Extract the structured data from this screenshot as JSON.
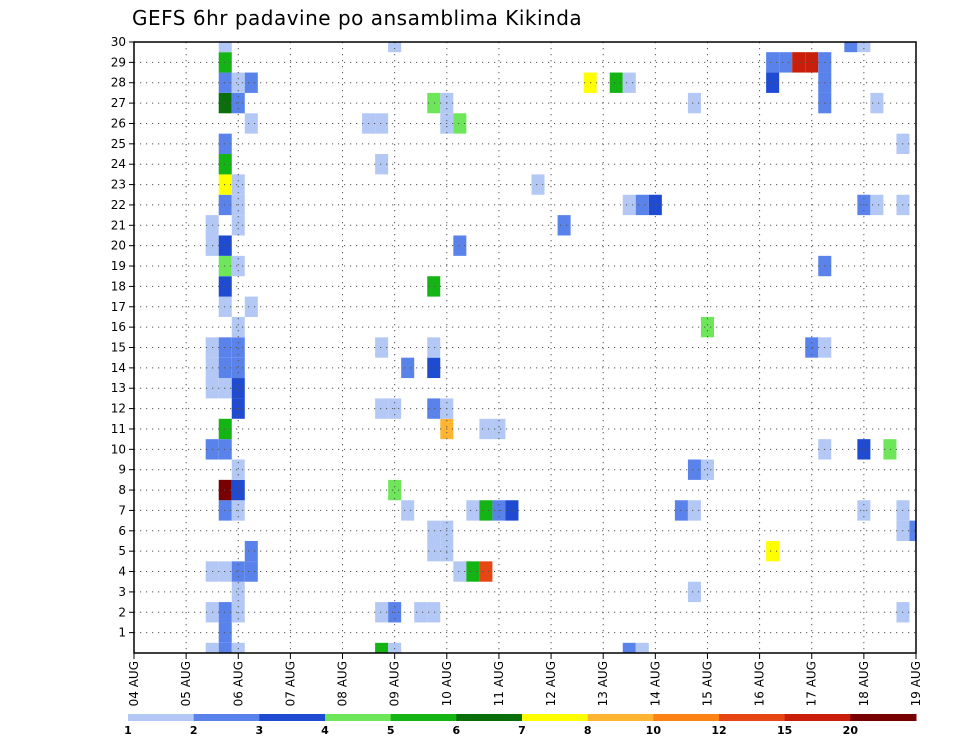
{
  "chart_data": {
    "type": "heatmap",
    "title": "GEFS 6hr padavine po ansamblima Kikinda",
    "xlabel": "",
    "ylabel": "",
    "x_ticks": [
      "04 AUG",
      "05 AUG",
      "06 AUG",
      "07 AUG",
      "08 AUG",
      "09 AUG",
      "10 AUG",
      "11 AUG",
      "12 AUG",
      "13 AUG",
      "14 AUG",
      "15 AUG",
      "16 AUG",
      "17 AUG",
      "18 AUG",
      "19 AUG"
    ],
    "xlim": [
      0,
      60
    ],
    "y_ticks": [
      1,
      2,
      3,
      4,
      5,
      6,
      7,
      8,
      9,
      10,
      11,
      12,
      13,
      14,
      15,
      16,
      17,
      18,
      19,
      20,
      21,
      22,
      23,
      24,
      25,
      26,
      27,
      28,
      29,
      30
    ],
    "ylim": [
      0,
      30
    ],
    "grid": true,
    "colorbar": {
      "labels": [
        "1",
        "2",
        "3",
        "4",
        "5",
        "6",
        "7",
        "8",
        "10",
        "12",
        "15",
        "20"
      ],
      "colors": [
        "#b4c8f5",
        "#5a82eb",
        "#1e4bd2",
        "#6ee65a",
        "#14b414",
        "#0a6e0a",
        "#ffff00",
        "#ffb432",
        "#ff8214",
        "#e64614",
        "#c81e0a",
        "#780000"
      ]
    },
    "cells": [
      {
        "x": 6,
        "m": 0,
        "v": 1.5
      },
      {
        "x": 7,
        "m": 0,
        "v": 2.5
      },
      {
        "x": 8,
        "m": 0,
        "v": 1.5
      },
      {
        "x": 19,
        "m": 0,
        "v": 5.5
      },
      {
        "x": 20,
        "m": 0,
        "v": 1.5
      },
      {
        "x": 38,
        "m": 0,
        "v": 2.5
      },
      {
        "x": 39,
        "m": 0,
        "v": 1.5
      },
      {
        "x": 7,
        "m": 1,
        "v": 2.5
      },
      {
        "x": 6,
        "m": 2,
        "v": 1.5
      },
      {
        "x": 7,
        "m": 2,
        "v": 2.5
      },
      {
        "x": 8,
        "m": 2,
        "v": 1.5
      },
      {
        "x": 19,
        "m": 2,
        "v": 1.5
      },
      {
        "x": 20,
        "m": 2,
        "v": 2.5
      },
      {
        "x": 22,
        "m": 2,
        "v": 1.5
      },
      {
        "x": 23,
        "m": 2,
        "v": 1.5
      },
      {
        "x": 59,
        "m": 2,
        "v": 1.5
      },
      {
        "x": 8,
        "m": 3,
        "v": 1.5
      },
      {
        "x": 43,
        "m": 3,
        "v": 1.5
      },
      {
        "x": 6,
        "m": 4,
        "v": 1.5
      },
      {
        "x": 7,
        "m": 4,
        "v": 1.5
      },
      {
        "x": 8,
        "m": 4,
        "v": 2.5
      },
      {
        "x": 9,
        "m": 4,
        "v": 2.5
      },
      {
        "x": 25,
        "m": 4,
        "v": 1.5
      },
      {
        "x": 26,
        "m": 4,
        "v": 5.5
      },
      {
        "x": 27,
        "m": 4,
        "v": 14
      },
      {
        "x": 9,
        "m": 5,
        "v": 2.5
      },
      {
        "x": 23,
        "m": 5,
        "v": 1.5
      },
      {
        "x": 24,
        "m": 5,
        "v": 1.5
      },
      {
        "x": 49,
        "m": 5,
        "v": 7.5
      },
      {
        "x": 23,
        "m": 6,
        "v": 1.5
      },
      {
        "x": 24,
        "m": 6,
        "v": 1.5
      },
      {
        "x": 59,
        "m": 6,
        "v": 1.5
      },
      {
        "x": 60,
        "m": 6,
        "v": 2.5
      },
      {
        "x": 7,
        "m": 7,
        "v": 2.5
      },
      {
        "x": 8,
        "m": 7,
        "v": 1.5
      },
      {
        "x": 21,
        "m": 7,
        "v": 1.5
      },
      {
        "x": 26,
        "m": 7,
        "v": 1.5
      },
      {
        "x": 27,
        "m": 7,
        "v": 5.5
      },
      {
        "x": 28,
        "m": 7,
        "v": 2.5
      },
      {
        "x": 29,
        "m": 7,
        "v": 3.5
      },
      {
        "x": 42,
        "m": 7,
        "v": 2.5
      },
      {
        "x": 43,
        "m": 7,
        "v": 1.5
      },
      {
        "x": 56,
        "m": 7,
        "v": 1.5
      },
      {
        "x": 59,
        "m": 7,
        "v": 1.5
      },
      {
        "x": 7,
        "m": 8,
        "v": 25
      },
      {
        "x": 8,
        "m": 8,
        "v": 3.5
      },
      {
        "x": 20,
        "m": 8,
        "v": 4.5
      },
      {
        "x": 8,
        "m": 9,
        "v": 1.5
      },
      {
        "x": 43,
        "m": 9,
        "v": 2.5
      },
      {
        "x": 44,
        "m": 9,
        "v": 1.5
      },
      {
        "x": 6,
        "m": 10,
        "v": 2.5
      },
      {
        "x": 7,
        "m": 10,
        "v": 2.5
      },
      {
        "x": 53,
        "m": 10,
        "v": 1.5
      },
      {
        "x": 56,
        "m": 10,
        "v": 3.5
      },
      {
        "x": 58,
        "m": 10,
        "v": 4.5
      },
      {
        "x": 7,
        "m": 11,
        "v": 5.5
      },
      {
        "x": 24,
        "m": 11,
        "v": 9
      },
      {
        "x": 27,
        "m": 11,
        "v": 1.5
      },
      {
        "x": 28,
        "m": 11,
        "v": 1.5
      },
      {
        "x": 8,
        "m": 12,
        "v": 3.5
      },
      {
        "x": 19,
        "m": 12,
        "v": 1.5
      },
      {
        "x": 20,
        "m": 12,
        "v": 1.5
      },
      {
        "x": 23,
        "m": 12,
        "v": 2.5
      },
      {
        "x": 24,
        "m": 12,
        "v": 1.5
      },
      {
        "x": 6,
        "m": 13,
        "v": 1.5
      },
      {
        "x": 7,
        "m": 13,
        "v": 1.5
      },
      {
        "x": 8,
        "m": 13,
        "v": 3.5
      },
      {
        "x": 6,
        "m": 14,
        "v": 1.5
      },
      {
        "x": 7,
        "m": 14,
        "v": 2.5
      },
      {
        "x": 8,
        "m": 14,
        "v": 2.5
      },
      {
        "x": 21,
        "m": 14,
        "v": 2.5
      },
      {
        "x": 23,
        "m": 14,
        "v": 3.5
      },
      {
        "x": 6,
        "m": 15,
        "v": 1.5
      },
      {
        "x": 7,
        "m": 15,
        "v": 2.5
      },
      {
        "x": 8,
        "m": 15,
        "v": 2.5
      },
      {
        "x": 19,
        "m": 15,
        "v": 1.5
      },
      {
        "x": 23,
        "m": 15,
        "v": 1.5
      },
      {
        "x": 52,
        "m": 15,
        "v": 2.5
      },
      {
        "x": 53,
        "m": 15,
        "v": 1.5
      },
      {
        "x": 8,
        "m": 16,
        "v": 1.5
      },
      {
        "x": 44,
        "m": 16,
        "v": 4.5
      },
      {
        "x": 7,
        "m": 17,
        "v": 1.5
      },
      {
        "x": 9,
        "m": 17,
        "v": 1.5
      },
      {
        "x": 7,
        "m": 18,
        "v": 3.5
      },
      {
        "x": 23,
        "m": 18,
        "v": 5.5
      },
      {
        "x": 7,
        "m": 19,
        "v": 4.5
      },
      {
        "x": 8,
        "m": 19,
        "v": 1.5
      },
      {
        "x": 53,
        "m": 19,
        "v": 2.5
      },
      {
        "x": 6,
        "m": 20,
        "v": 1.5
      },
      {
        "x": 7,
        "m": 20,
        "v": 3.5
      },
      {
        "x": 25,
        "m": 20,
        "v": 2.5
      },
      {
        "x": 6,
        "m": 21,
        "v": 1.5
      },
      {
        "x": 8,
        "m": 21,
        "v": 1.5
      },
      {
        "x": 33,
        "m": 21,
        "v": 2.5
      },
      {
        "x": 7,
        "m": 22,
        "v": 2.5
      },
      {
        "x": 8,
        "m": 22,
        "v": 1.5
      },
      {
        "x": 38,
        "m": 22,
        "v": 1.5
      },
      {
        "x": 39,
        "m": 22,
        "v": 2.5
      },
      {
        "x": 40,
        "m": 22,
        "v": 3.5
      },
      {
        "x": 56,
        "m": 22,
        "v": 2.5
      },
      {
        "x": 57,
        "m": 22,
        "v": 1.5
      },
      {
        "x": 59,
        "m": 22,
        "v": 1.5
      },
      {
        "x": 7,
        "m": 23,
        "v": 7.5
      },
      {
        "x": 8,
        "m": 23,
        "v": 1.5
      },
      {
        "x": 31,
        "m": 23,
        "v": 1.5
      },
      {
        "x": 7,
        "m": 24,
        "v": 5.5
      },
      {
        "x": 19,
        "m": 24,
        "v": 1.5
      },
      {
        "x": 7,
        "m": 25,
        "v": 2.5
      },
      {
        "x": 59,
        "m": 25,
        "v": 1.5
      },
      {
        "x": 9,
        "m": 26,
        "v": 1.5
      },
      {
        "x": 18,
        "m": 26,
        "v": 1.5
      },
      {
        "x": 19,
        "m": 26,
        "v": 1.5
      },
      {
        "x": 24,
        "m": 26,
        "v": 1.5
      },
      {
        "x": 25,
        "m": 26,
        "v": 4.5
      },
      {
        "x": 7,
        "m": 27,
        "v": 6.5
      },
      {
        "x": 8,
        "m": 27,
        "v": 2.5
      },
      {
        "x": 23,
        "m": 27,
        "v": 4.5
      },
      {
        "x": 24,
        "m": 27,
        "v": 1.5
      },
      {
        "x": 43,
        "m": 27,
        "v": 1.5
      },
      {
        "x": 53,
        "m": 27,
        "v": 2.5
      },
      {
        "x": 57,
        "m": 27,
        "v": 1.5
      },
      {
        "x": 7,
        "m": 28,
        "v": 2.5
      },
      {
        "x": 8,
        "m": 28,
        "v": 1.5
      },
      {
        "x": 9,
        "m": 28,
        "v": 2.5
      },
      {
        "x": 35,
        "m": 28,
        "v": 7.5
      },
      {
        "x": 37,
        "m": 28,
        "v": 5.5
      },
      {
        "x": 38,
        "m": 28,
        "v": 1.5
      },
      {
        "x": 49,
        "m": 28,
        "v": 3.5
      },
      {
        "x": 53,
        "m": 28,
        "v": 2.5
      },
      {
        "x": 7,
        "m": 29,
        "v": 5.5
      },
      {
        "x": 49,
        "m": 29,
        "v": 2.5
      },
      {
        "x": 50,
        "m": 29,
        "v": 2.5
      },
      {
        "x": 51,
        "m": 29,
        "v": 16
      },
      {
        "x": 52,
        "m": 29,
        "v": 16
      },
      {
        "x": 53,
        "m": 29,
        "v": 2.5
      },
      {
        "x": 7,
        "m": 30,
        "v": 1.5
      },
      {
        "x": 20,
        "m": 30,
        "v": 1.5
      },
      {
        "x": 55,
        "m": 30,
        "v": 2.5
      },
      {
        "x": 56,
        "m": 30,
        "v": 1.5
      }
    ]
  }
}
